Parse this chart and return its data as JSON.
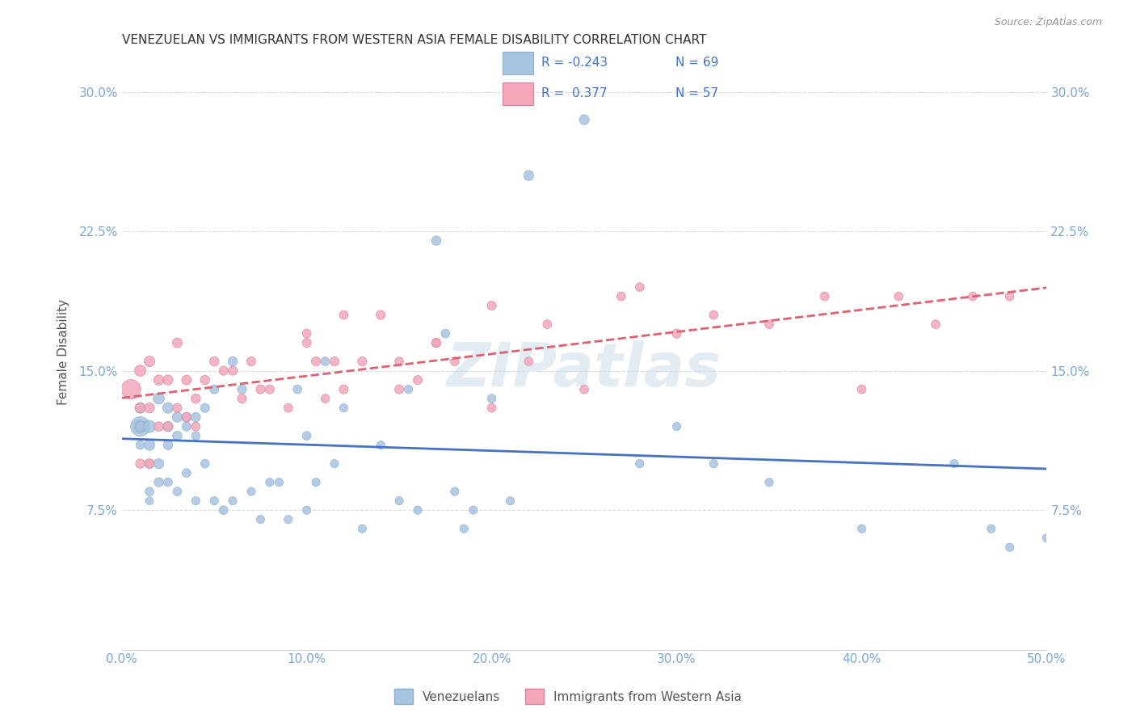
{
  "title": "VENEZUELAN VS IMMIGRANTS FROM WESTERN ASIA FEMALE DISABILITY CORRELATION CHART",
  "source": "Source: ZipAtlas.com",
  "ylabel": "Female Disability",
  "xlabel": "",
  "xlim": [
    0.0,
    0.5
  ],
  "ylim": [
    0.0,
    0.32
  ],
  "xticks": [
    0.0,
    0.1,
    0.2,
    0.3,
    0.4,
    0.5
  ],
  "yticks": [
    0.075,
    0.15,
    0.225,
    0.3
  ],
  "ytick_labels": [
    "7.5%",
    "15.0%",
    "22.5%",
    "30.0%"
  ],
  "xtick_labels": [
    "0.0%",
    "10.0%",
    "20.0%",
    "30.0%",
    "40.0%",
    "50.0%"
  ],
  "blue_color": "#a8c4e0",
  "pink_color": "#f4a7b9",
  "blue_line_color": "#4472c4",
  "pink_line_color": "#e06070",
  "legend_blue_R": "R = -0.243",
  "legend_blue_N": "N = 69",
  "legend_pink_R": "R =  0.377",
  "legend_pink_N": "N = 57",
  "watermark": "ZIPatlas",
  "blue_scatter_x": [
    0.01,
    0.01,
    0.01,
    0.01,
    0.01,
    0.015,
    0.015,
    0.015,
    0.015,
    0.015,
    0.02,
    0.02,
    0.02,
    0.025,
    0.025,
    0.025,
    0.025,
    0.03,
    0.03,
    0.03,
    0.035,
    0.035,
    0.035,
    0.04,
    0.04,
    0.04,
    0.045,
    0.045,
    0.05,
    0.05,
    0.055,
    0.06,
    0.06,
    0.065,
    0.07,
    0.075,
    0.08,
    0.085,
    0.09,
    0.095,
    0.1,
    0.1,
    0.105,
    0.11,
    0.115,
    0.12,
    0.13,
    0.14,
    0.15,
    0.155,
    0.16,
    0.17,
    0.175,
    0.18,
    0.185,
    0.19,
    0.2,
    0.21,
    0.22,
    0.25,
    0.28,
    0.3,
    0.32,
    0.35,
    0.4,
    0.45,
    0.47,
    0.48,
    0.5
  ],
  "blue_scatter_y": [
    0.12,
    0.12,
    0.13,
    0.12,
    0.11,
    0.12,
    0.11,
    0.1,
    0.085,
    0.08,
    0.135,
    0.1,
    0.09,
    0.13,
    0.12,
    0.11,
    0.09,
    0.125,
    0.115,
    0.085,
    0.125,
    0.12,
    0.095,
    0.125,
    0.115,
    0.08,
    0.13,
    0.1,
    0.14,
    0.08,
    0.075,
    0.155,
    0.08,
    0.14,
    0.085,
    0.07,
    0.09,
    0.09,
    0.07,
    0.14,
    0.115,
    0.075,
    0.09,
    0.155,
    0.1,
    0.13,
    0.065,
    0.11,
    0.08,
    0.14,
    0.075,
    0.22,
    0.17,
    0.085,
    0.065,
    0.075,
    0.135,
    0.08,
    0.255,
    0.285,
    0.1,
    0.12,
    0.1,
    0.09,
    0.065,
    0.1,
    0.065,
    0.055,
    0.06
  ],
  "blue_scatter_size": [
    300,
    120,
    90,
    80,
    60,
    120,
    90,
    70,
    60,
    50,
    100,
    80,
    70,
    90,
    80,
    70,
    60,
    80,
    70,
    60,
    75,
    65,
    60,
    70,
    60,
    55,
    65,
    60,
    65,
    55,
    60,
    70,
    55,
    65,
    55,
    55,
    55,
    55,
    55,
    60,
    60,
    55,
    55,
    60,
    55,
    55,
    55,
    55,
    55,
    55,
    55,
    70,
    60,
    55,
    55,
    55,
    60,
    55,
    80,
    80,
    55,
    55,
    55,
    55,
    55,
    55,
    55,
    55,
    55
  ],
  "pink_scatter_x": [
    0.005,
    0.01,
    0.01,
    0.01,
    0.015,
    0.015,
    0.015,
    0.02,
    0.02,
    0.025,
    0.025,
    0.03,
    0.03,
    0.035,
    0.035,
    0.04,
    0.04,
    0.045,
    0.05,
    0.055,
    0.06,
    0.065,
    0.07,
    0.075,
    0.08,
    0.09,
    0.1,
    0.105,
    0.11,
    0.115,
    0.12,
    0.13,
    0.14,
    0.15,
    0.16,
    0.17,
    0.18,
    0.2,
    0.22,
    0.25,
    0.27,
    0.3,
    0.32,
    0.35,
    0.38,
    0.4,
    0.42,
    0.44,
    0.46,
    0.48,
    0.1,
    0.12,
    0.15,
    0.17,
    0.2,
    0.23,
    0.28
  ],
  "pink_scatter_y": [
    0.14,
    0.15,
    0.13,
    0.1,
    0.155,
    0.13,
    0.1,
    0.145,
    0.12,
    0.145,
    0.12,
    0.165,
    0.13,
    0.145,
    0.125,
    0.135,
    0.12,
    0.145,
    0.155,
    0.15,
    0.15,
    0.135,
    0.155,
    0.14,
    0.14,
    0.13,
    0.165,
    0.155,
    0.135,
    0.155,
    0.14,
    0.155,
    0.18,
    0.14,
    0.145,
    0.165,
    0.155,
    0.185,
    0.155,
    0.14,
    0.19,
    0.17,
    0.18,
    0.175,
    0.19,
    0.14,
    0.19,
    0.175,
    0.19,
    0.19,
    0.17,
    0.18,
    0.155,
    0.165,
    0.13,
    0.175,
    0.195
  ],
  "pink_scatter_size": [
    300,
    100,
    80,
    70,
    90,
    80,
    70,
    80,
    70,
    80,
    70,
    75,
    65,
    75,
    65,
    70,
    60,
    70,
    70,
    65,
    65,
    65,
    65,
    65,
    65,
    60,
    65,
    65,
    60,
    65,
    65,
    65,
    65,
    65,
    65,
    65,
    60,
    65,
    60,
    60,
    60,
    65,
    60,
    60,
    60,
    60,
    60,
    60,
    60,
    60,
    60,
    60,
    60,
    60,
    60,
    60,
    60
  ],
  "background_color": "#ffffff",
  "grid_color": "#dddddd",
  "title_color": "#333333",
  "axis_label_color": "#555555",
  "tick_color": "#7fa8d4",
  "legend_label_color": "#4472c4"
}
